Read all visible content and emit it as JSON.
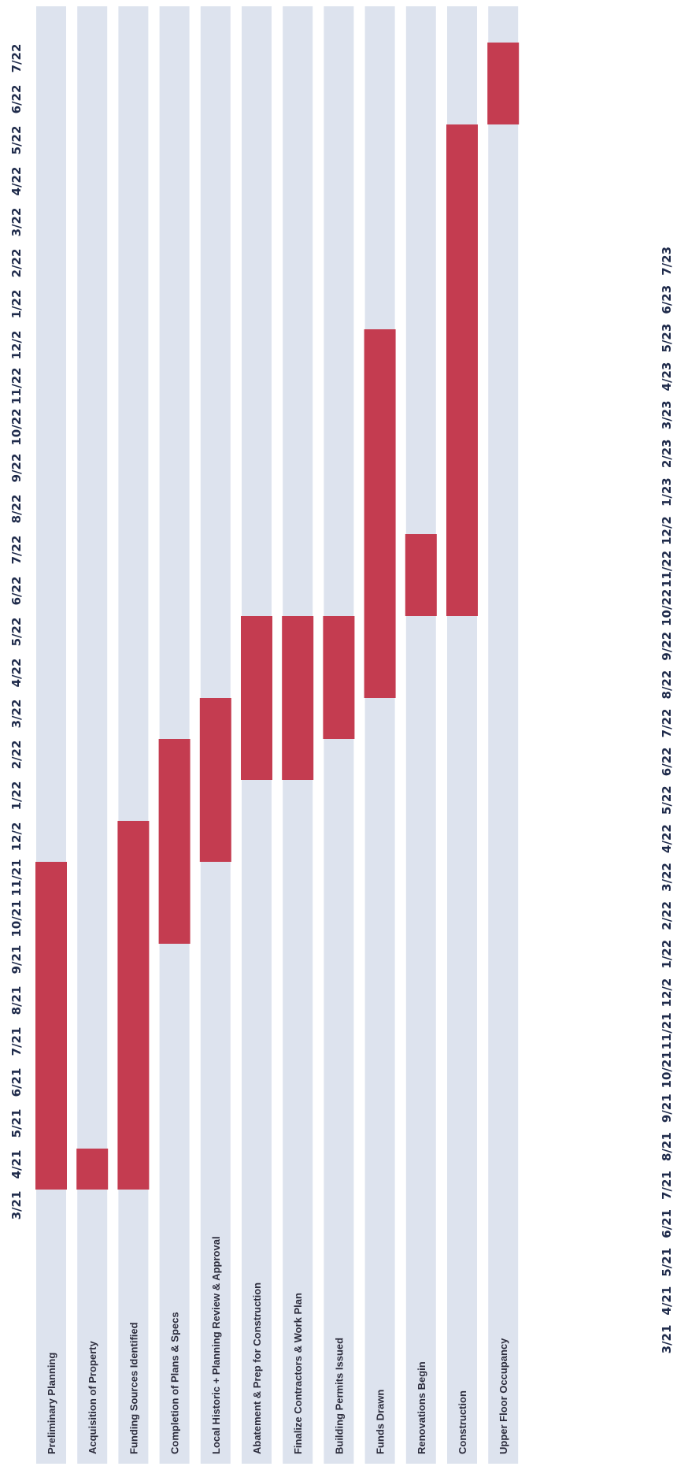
{
  "chart_data": {
    "type": "bar",
    "subtype": "gantt",
    "orientation": "rotated-90-clockwise",
    "time_axis": {
      "ticks": [
        "3/21",
        "4/21",
        "5/21",
        "6/21",
        "7/21",
        "8/21",
        "9/21",
        "10/21",
        "11/21",
        "12/2",
        "1/22",
        "2/22",
        "3/22",
        "4/22",
        "5/22",
        "6/22",
        "7/22",
        "8/22",
        "9/22",
        "10/22",
        "11/22",
        "12/2",
        "1/22",
        "2/22",
        "3/22",
        "4/22",
        "5/22",
        "6/22",
        "7/22"
      ],
      "ticks_secondary": [
        "3/21",
        "4/21",
        "5/21",
        "6/21",
        "7/21",
        "8/21",
        "9/21",
        "10/21",
        "11/21",
        "12/2",
        "1/22",
        "2/22",
        "3/22",
        "4/22",
        "5/22",
        "6/22",
        "7/22",
        "8/22",
        "9/22",
        "10/22",
        "11/22",
        "12/2",
        "1/23",
        "2/23",
        "3/23",
        "4/23",
        "5/23",
        "6/23",
        "7/23"
      ]
    },
    "categories": [
      "Preliminary Planning",
      "Acquisition of Property",
      "Funding Sources Identified",
      "Completion of Plans & Specs",
      "Local Historic + Planning Review & Approval",
      "Abatement & Prep for Construction",
      "Finalize Contractors & Work Plan",
      "Building Permits Issued",
      "Funds Drawn",
      "Renovations Begin",
      "Construction",
      "Upper Floor Occupancy"
    ],
    "tasks": [
      {
        "start": "3/21",
        "end": "11/21"
      },
      {
        "start": "3/21",
        "end": "4/21"
      },
      {
        "start": "3/21",
        "end": "12/21"
      },
      {
        "start": "9/21",
        "end": "2/22"
      },
      {
        "start": "11/21",
        "end": "3/22"
      },
      {
        "start": "1/22",
        "end": "5/22"
      },
      {
        "start": "1/22",
        "end": "5/22"
      },
      {
        "start": "2/22",
        "end": "5/22"
      },
      {
        "start": "3/22",
        "end": "12/22"
      },
      {
        "start": "5/22",
        "end": "7/22"
      },
      {
        "start": "5/22",
        "end": "5/23"
      },
      {
        "start": "5/23",
        "end": "7/23"
      }
    ],
    "colors": {
      "bar": "#c43c50",
      "track": "#dde3ee",
      "tick_text": "#1e2a4a"
    }
  }
}
